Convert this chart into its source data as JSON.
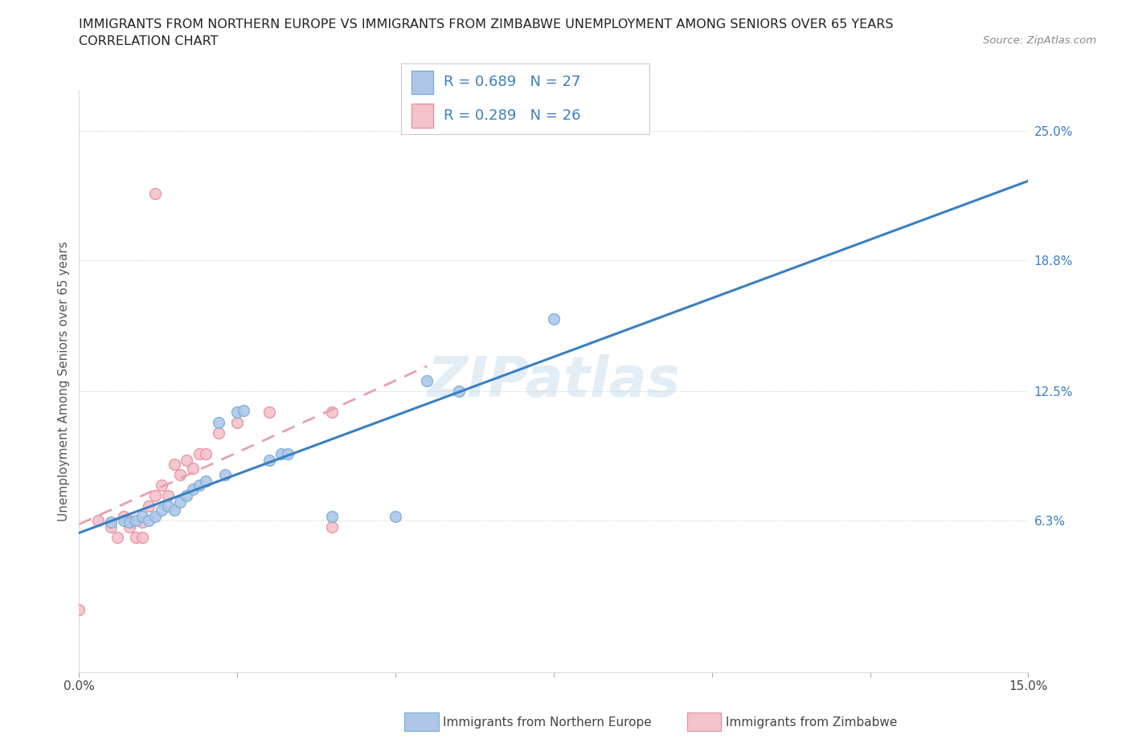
{
  "title_line1": "IMMIGRANTS FROM NORTHERN EUROPE VS IMMIGRANTS FROM ZIMBABWE UNEMPLOYMENT AMONG SENIORS OVER 65 YEARS",
  "title_line2": "CORRELATION CHART",
  "source": "Source: ZipAtlas.com",
  "ylabel": "Unemployment Among Seniors over 65 years",
  "xlim": [
    0.0,
    0.15
  ],
  "ylim": [
    -0.01,
    0.27
  ],
  "ytick_labels_right": [
    "6.3%",
    "12.5%",
    "18.8%",
    "25.0%"
  ],
  "ytick_vals_right": [
    0.063,
    0.125,
    0.188,
    0.25
  ],
  "blue_face": "#aec7e8",
  "blue_edge": "#7aafd4",
  "pink_face": "#f4c2cc",
  "pink_edge": "#e8909f",
  "line_blue": "#3a7fc1",
  "line_pink": "#e8a0b0",
  "blue_scatter": [
    [
      0.005,
      0.062
    ],
    [
      0.007,
      0.063
    ],
    [
      0.008,
      0.062
    ],
    [
      0.009,
      0.063
    ],
    [
      0.01,
      0.065
    ],
    [
      0.011,
      0.063
    ],
    [
      0.012,
      0.065
    ],
    [
      0.013,
      0.068
    ],
    [
      0.014,
      0.07
    ],
    [
      0.015,
      0.068
    ],
    [
      0.016,
      0.072
    ],
    [
      0.017,
      0.075
    ],
    [
      0.018,
      0.078
    ],
    [
      0.019,
      0.08
    ],
    [
      0.02,
      0.082
    ],
    [
      0.022,
      0.11
    ],
    [
      0.023,
      0.085
    ],
    [
      0.025,
      0.115
    ],
    [
      0.026,
      0.116
    ],
    [
      0.03,
      0.092
    ],
    [
      0.032,
      0.095
    ],
    [
      0.033,
      0.095
    ],
    [
      0.04,
      0.065
    ],
    [
      0.05,
      0.065
    ],
    [
      0.055,
      0.13
    ],
    [
      0.06,
      0.125
    ],
    [
      0.075,
      0.16
    ]
  ],
  "pink_scatter": [
    [
      0.0,
      0.02
    ],
    [
      0.003,
      0.063
    ],
    [
      0.005,
      0.06
    ],
    [
      0.006,
      0.055
    ],
    [
      0.007,
      0.065
    ],
    [
      0.008,
      0.06
    ],
    [
      0.008,
      0.063
    ],
    [
      0.009,
      0.055
    ],
    [
      0.01,
      0.055
    ],
    [
      0.01,
      0.062
    ],
    [
      0.011,
      0.07
    ],
    [
      0.012,
      0.075
    ],
    [
      0.013,
      0.08
    ],
    [
      0.014,
      0.075
    ],
    [
      0.015,
      0.09
    ],
    [
      0.016,
      0.085
    ],
    [
      0.017,
      0.092
    ],
    [
      0.018,
      0.088
    ],
    [
      0.019,
      0.095
    ],
    [
      0.02,
      0.095
    ],
    [
      0.022,
      0.105
    ],
    [
      0.025,
      0.11
    ],
    [
      0.03,
      0.115
    ],
    [
      0.04,
      0.06
    ],
    [
      0.04,
      0.115
    ],
    [
      0.012,
      0.22
    ]
  ],
  "xtick_positions": [
    0.0,
    0.025,
    0.05,
    0.075,
    0.1,
    0.125,
    0.15
  ],
  "xtick_labels": [
    "0.0%",
    "",
    "",
    "",
    "",
    "",
    "15.0%"
  ],
  "legend_blue_label": "R = 0.689   N = 27",
  "legend_pink_label": "R = 0.289   N = 26",
  "bottom_label_blue": "Immigrants from Northern Europe",
  "bottom_label_pink": "Immigrants from Zimbabwe"
}
